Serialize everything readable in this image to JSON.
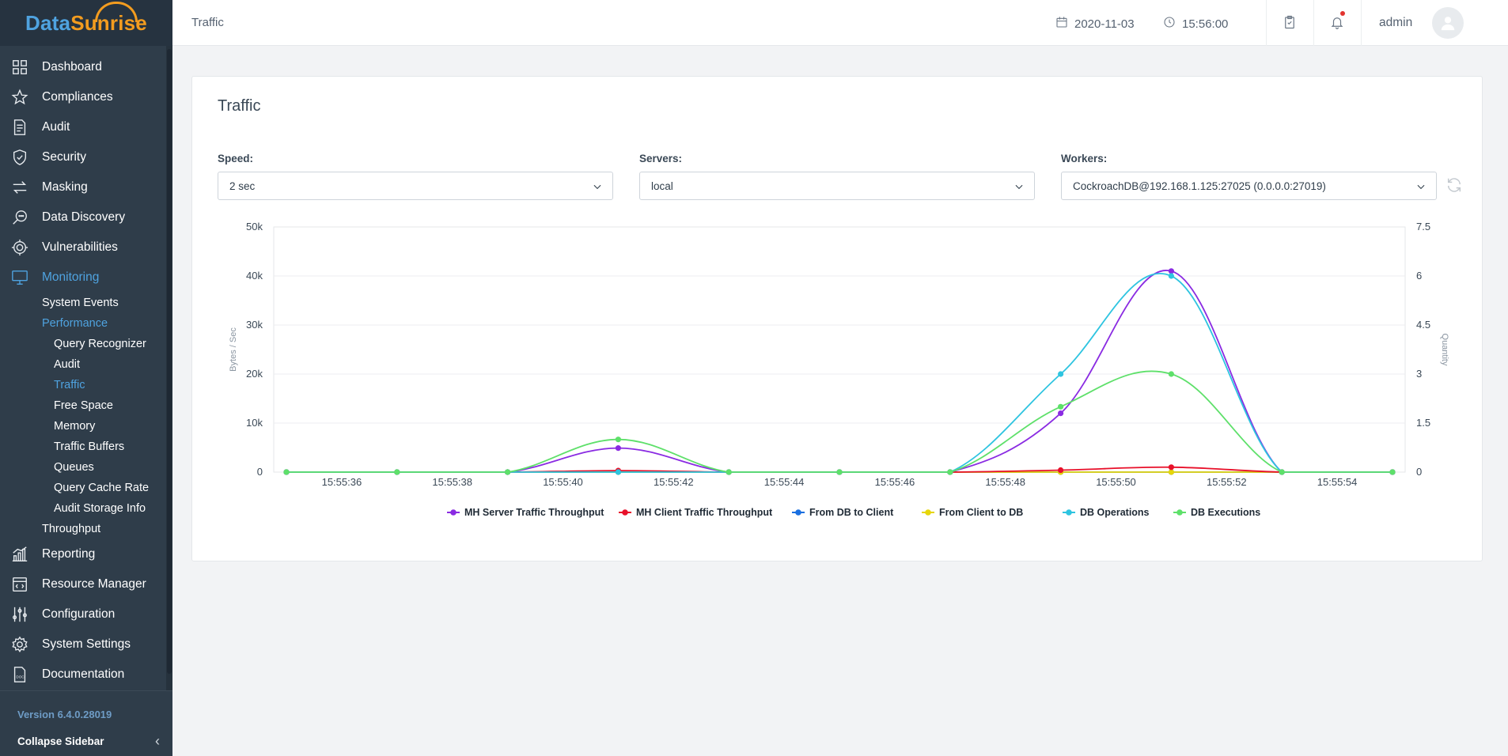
{
  "app": {
    "logo_part1": "Data",
    "logo_part2": "Sunrise",
    "version": "Version 6.4.0.28019",
    "collapse_label": "Collapse Sidebar"
  },
  "sidebar": {
    "items": [
      {
        "label": "Dashboard",
        "icon": "grid-icon"
      },
      {
        "label": "Compliances",
        "icon": "star-icon"
      },
      {
        "label": "Audit",
        "icon": "document-icon"
      },
      {
        "label": "Security",
        "icon": "shield-icon"
      },
      {
        "label": "Masking",
        "icon": "swap-icon"
      },
      {
        "label": "Data Discovery",
        "icon": "chat-search-icon"
      },
      {
        "label": "Vulnerabilities",
        "icon": "target-icon"
      },
      {
        "label": "Monitoring",
        "icon": "monitor-icon"
      }
    ],
    "monitoring_sub": {
      "system_events": "System Events",
      "performance": "Performance",
      "performance_sub": [
        "Query Recognizer",
        "Audit",
        "Traffic",
        "Free Space",
        "Memory",
        "Traffic Buffers",
        "Queues",
        "Query Cache Rate",
        "Audit Storage Info"
      ],
      "throughput": "Throughput"
    },
    "items_after": [
      {
        "label": "Reporting",
        "icon": "bar-chart-icon"
      },
      {
        "label": "Resource Manager",
        "icon": "code-window-icon"
      },
      {
        "label": "Configuration",
        "icon": "sliders-icon"
      },
      {
        "label": "System Settings",
        "icon": "gear-icon"
      },
      {
        "label": "Documentation",
        "icon": "doc-icon"
      }
    ]
  },
  "header": {
    "breadcrumb": "Traffic",
    "date": "2020-11-03",
    "time": "15:56:00",
    "user": "admin"
  },
  "card": {
    "title": "Traffic",
    "speed_label": "Speed:",
    "speed_value": "2 sec",
    "servers_label": "Servers:",
    "servers_value": "local",
    "workers_label": "Workers:",
    "workers_value": "CockroachDB@192.168.1.125:27025 (0.0.0.0:27019)"
  },
  "chart_data": {
    "type": "line",
    "x": [
      "15:55:35",
      "15:55:37",
      "15:55:39",
      "15:55:41",
      "15:55:43",
      "15:55:45",
      "15:55:47",
      "15:55:49",
      "15:55:51",
      "15:55:53",
      "15:55:55"
    ],
    "x_tick_labels": [
      "15:55:36",
      "15:55:38",
      "15:55:40",
      "15:55:42",
      "15:55:44",
      "15:55:46",
      "15:55:48",
      "15:55:50",
      "15:55:52",
      "15:55:54"
    ],
    "ylabel": "Bytes / Sec",
    "y2label": "Quantity",
    "ylim": [
      0,
      50000
    ],
    "y2lim": [
      0,
      7.5
    ],
    "y_tick_labels": [
      "0",
      "10k",
      "20k",
      "30k",
      "40k",
      "50k"
    ],
    "y2_tick_labels": [
      "0",
      "1.5",
      "3",
      "4.5",
      "6",
      "7.5"
    ],
    "grid": true,
    "legend": "bottom",
    "series": [
      {
        "name": "MH Server Traffic Throughput",
        "axis": "left",
        "color": "#8a2be2",
        "values": [
          0,
          0,
          0,
          4900,
          0,
          0,
          0,
          12000,
          41000,
          0,
          0
        ]
      },
      {
        "name": "MH Client Traffic Throughput",
        "axis": "left",
        "color": "#e8102a",
        "values": [
          0,
          0,
          0,
          300,
          0,
          0,
          0,
          400,
          1000,
          0,
          0
        ]
      },
      {
        "name": "From DB to Client",
        "axis": "left",
        "color": "#1a6fe0",
        "values": [
          0,
          0,
          0,
          0,
          0,
          0,
          0,
          0,
          0,
          0,
          0
        ]
      },
      {
        "name": "From Client to DB",
        "axis": "left",
        "color": "#e6d60a",
        "values": [
          0,
          0,
          0,
          0,
          0,
          0,
          0,
          0,
          0,
          0,
          0
        ]
      },
      {
        "name": "DB Operations",
        "axis": "right",
        "color": "#2ec4e0",
        "values": [
          0,
          0,
          0,
          0,
          0,
          0,
          0,
          3,
          6,
          0,
          0
        ]
      },
      {
        "name": "DB Executions",
        "axis": "right",
        "color": "#5ee06a",
        "values": [
          0,
          0,
          0,
          1,
          0,
          0,
          0,
          2,
          3,
          0,
          0
        ]
      }
    ]
  }
}
